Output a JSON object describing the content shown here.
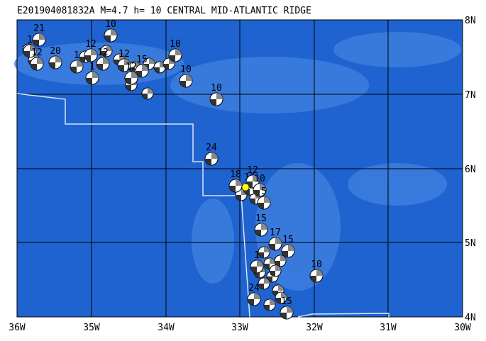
{
  "header": {
    "title": "E201904081832A  M=4.7  h= 10  CENTRAL MID-ATLANTIC RIDGE"
  },
  "lon_labels": [
    "36W",
    "35W",
    "34W",
    "33W",
    "32W",
    "31W",
    "30W"
  ],
  "lat_labels": [
    "8N",
    "7N",
    "6N",
    "5N",
    "4N"
  ],
  "events": [
    {
      "label": "21"
    },
    {
      "label": "1"
    },
    {
      "label": "12"
    },
    {
      "label": "20"
    },
    {
      "label": "1"
    },
    {
      "label": "12"
    },
    {
      "label": "10"
    },
    {
      "label": "12"
    },
    {
      "label": "12"
    },
    {
      "label": "15"
    },
    {
      "label": "12"
    },
    {
      "label": "1"
    },
    {
      "label": "10"
    },
    {
      "label": "10"
    },
    {
      "label": "10"
    },
    {
      "label": "24"
    },
    {
      "label": "18"
    },
    {
      "label": "16"
    },
    {
      "label": "12"
    },
    {
      "label": "10"
    },
    {
      "label": "5"
    },
    {
      "label": "15"
    },
    {
      "label": "17"
    },
    {
      "label": "15"
    },
    {
      "label": "1"
    },
    {
      "label": "10"
    },
    {
      "label": "24"
    },
    {
      "label": "15"
    }
  ]
}
